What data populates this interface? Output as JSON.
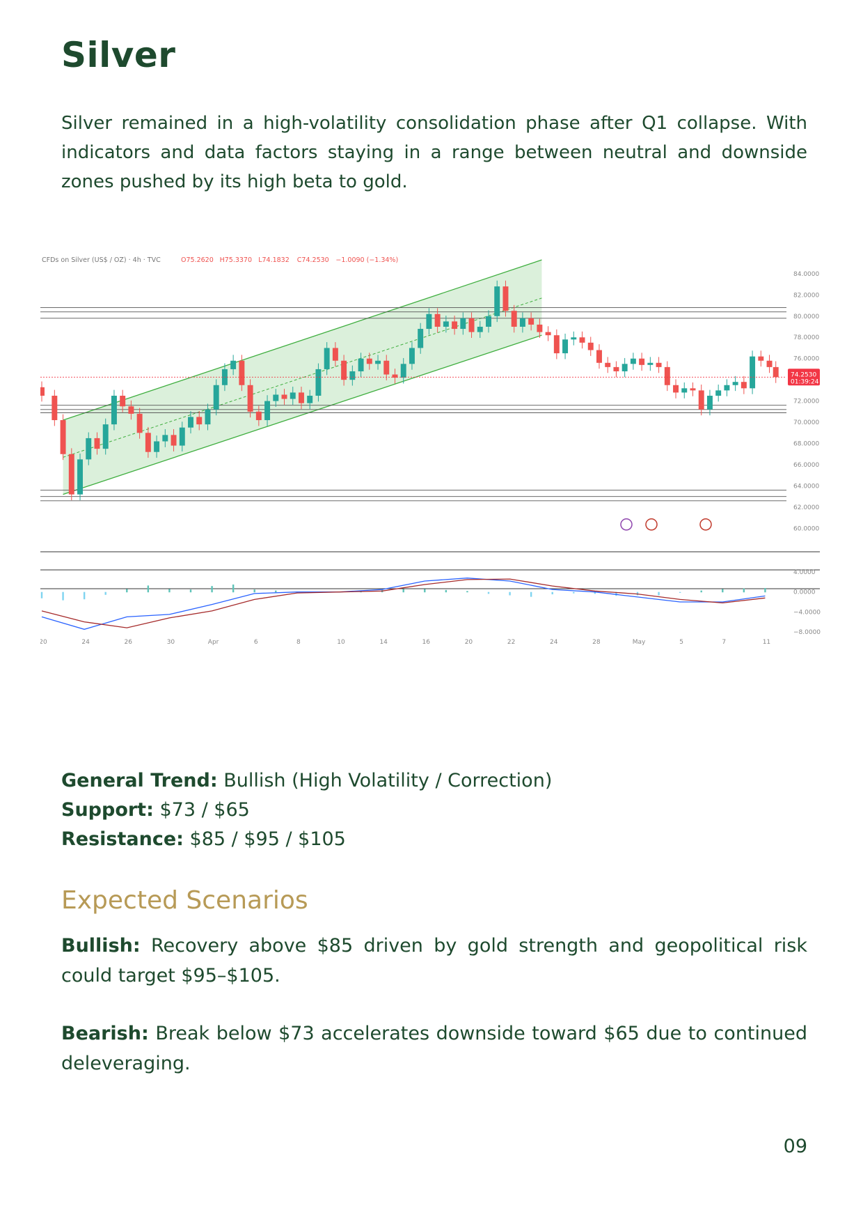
{
  "page": {
    "title": "Silver",
    "intro": "Silver remained in a high-volatility consolidation phase after Q1 collapse. With indicators and data factors staying in a range between neutral and downside zones pushed by its high beta to gold.",
    "page_number": "09"
  },
  "stats": {
    "trend_label": "General Trend:",
    "trend_value": " Bullish (High Volatility / Correction)",
    "support_label": "Support:",
    "support_value": " $73 / $65",
    "resistance_label": "Resistance:",
    "resistance_value": " $85 / $95 / $105"
  },
  "scenarios": {
    "heading": "Expected Scenarios",
    "bullish_label": "Bullish:",
    "bullish_text": " Recovery above $85 driven by gold strength and geopolitical risk could target $95–$105.",
    "bearish_label": "Bearish:",
    "bearish_text": " Break below $73 accelerates downside toward $65 due to continued deleveraging."
  },
  "chart_data": {
    "type": "candlestick",
    "header": {
      "symbol": "CFDs on Silver (US$ / OZ) · 4h · TVC",
      "o": "O75.2620",
      "h": "H75.3370",
      "l": "L74.1832",
      "c": "C74.2530",
      "change": "−1.0090 (−1.34%)"
    },
    "price_axis": [
      "84.0000",
      "82.0000",
      "80.0000",
      "78.0000",
      "76.0000",
      "72.0000",
      "70.0000",
      "68.0000",
      "66.0000",
      "64.0000",
      "62.0000",
      "60.0000"
    ],
    "price_ticks": [
      84,
      82,
      80,
      78,
      76,
      72,
      70,
      68,
      66,
      64,
      62,
      60
    ],
    "ylim": [
      59.5,
      85.5
    ],
    "last_price": "74.2530",
    "last_value": 74.253,
    "countdown": "01:39:24",
    "x_labels": [
      "20",
      "24",
      "26",
      "30",
      "Apr",
      "6",
      "8",
      "10",
      "14",
      "16",
      "20",
      "22",
      "24",
      "28",
      "May",
      "5",
      "7",
      "11"
    ],
    "x_ticks": [
      0,
      2,
      4,
      6,
      8,
      10,
      12,
      14,
      16,
      18,
      20,
      22,
      24,
      26,
      28,
      30,
      32,
      34
    ],
    "x_range": [
      0,
      35
    ],
    "closes": [
      [
        0.0,
        72.5
      ],
      [
        0.6,
        70.2
      ],
      [
        1.0,
        67.0
      ],
      [
        1.4,
        63.2
      ],
      [
        1.8,
        66.5
      ],
      [
        2.2,
        68.5
      ],
      [
        2.6,
        67.5
      ],
      [
        3.0,
        69.8
      ],
      [
        3.4,
        72.5
      ],
      [
        3.8,
        71.5
      ],
      [
        4.2,
        70.8
      ],
      [
        4.6,
        69.0
      ],
      [
        5.0,
        67.2
      ],
      [
        5.4,
        68.2
      ],
      [
        5.8,
        68.8
      ],
      [
        6.2,
        67.8
      ],
      [
        6.6,
        69.5
      ],
      [
        7.0,
        70.5
      ],
      [
        7.4,
        69.8
      ],
      [
        7.8,
        71.2
      ],
      [
        8.2,
        73.5
      ],
      [
        8.6,
        75.0
      ],
      [
        9.0,
        75.8
      ],
      [
        9.4,
        73.5
      ],
      [
        9.8,
        71.0
      ],
      [
        10.2,
        70.2
      ],
      [
        10.6,
        72.0
      ],
      [
        11.0,
        72.6
      ],
      [
        11.4,
        72.2
      ],
      [
        11.8,
        72.8
      ],
      [
        12.2,
        71.8
      ],
      [
        12.6,
        72.5
      ],
      [
        13.0,
        75.0
      ],
      [
        13.4,
        77.0
      ],
      [
        13.8,
        75.8
      ],
      [
        14.2,
        74.0
      ],
      [
        14.6,
        74.8
      ],
      [
        15.0,
        76.0
      ],
      [
        15.4,
        75.5
      ],
      [
        15.8,
        75.8
      ],
      [
        16.2,
        74.5
      ],
      [
        16.6,
        74.2
      ],
      [
        17.0,
        75.5
      ],
      [
        17.4,
        77.0
      ],
      [
        17.8,
        78.8
      ],
      [
        18.2,
        80.2
      ],
      [
        18.6,
        79.0
      ],
      [
        19.0,
        79.5
      ],
      [
        19.4,
        78.8
      ],
      [
        19.8,
        79.8
      ],
      [
        20.2,
        78.5
      ],
      [
        20.6,
        79.0
      ],
      [
        21.0,
        80.0
      ],
      [
        21.4,
        82.8
      ],
      [
        21.8,
        80.5
      ],
      [
        22.2,
        79.0
      ],
      [
        22.6,
        79.8
      ],
      [
        23.0,
        79.2
      ],
      [
        23.4,
        78.5
      ],
      [
        23.8,
        78.2
      ],
      [
        24.2,
        76.5
      ],
      [
        24.6,
        77.8
      ],
      [
        25.0,
        78.0
      ],
      [
        25.4,
        77.5
      ],
      [
        25.8,
        76.8
      ],
      [
        26.2,
        75.6
      ],
      [
        26.6,
        75.2
      ],
      [
        27.0,
        74.8
      ],
      [
        27.4,
        75.5
      ],
      [
        27.8,
        76.0
      ],
      [
        28.2,
        75.4
      ],
      [
        28.6,
        75.6
      ],
      [
        29.0,
        75.2
      ],
      [
        29.4,
        73.5
      ],
      [
        29.8,
        72.8
      ],
      [
        30.2,
        73.2
      ],
      [
        30.6,
        73.0
      ],
      [
        31.0,
        71.2
      ],
      [
        31.4,
        72.5
      ],
      [
        31.8,
        73.0
      ],
      [
        32.2,
        73.5
      ],
      [
        32.6,
        73.8
      ],
      [
        33.0,
        73.2
      ],
      [
        33.4,
        76.2
      ],
      [
        33.8,
        75.8
      ],
      [
        34.2,
        75.2
      ],
      [
        34.5,
        74.25
      ]
    ],
    "channel": {
      "lower": [
        [
          1.0,
          63.2
        ],
        [
          23.5,
          78.2
        ]
      ],
      "upper": [
        [
          1.0,
          70.2
        ],
        [
          23.5,
          85.3
        ]
      ],
      "mid": [
        [
          1.0,
          66.7
        ],
        [
          23.5,
          81.7
        ]
      ],
      "fill": "#d7eed7",
      "line": "#3fae3f"
    },
    "horizontal_levels": [
      80.8,
      80.4,
      79.8,
      71.6,
      71.2,
      70.9,
      63.6,
      63.0,
      62.6
    ],
    "macd_axis": [
      "4.0000",
      "0.0000",
      "−4.0000",
      "−8.0000"
    ],
    "macd_ticks": [
      4,
      0,
      -4,
      -8
    ],
    "macd_ylim": [
      -9,
      5
    ],
    "macd_line": [
      [
        0,
        -5.0
      ],
      [
        2,
        -7.5
      ],
      [
        4,
        -5.0
      ],
      [
        6,
        -4.5
      ],
      [
        8,
        -2.5
      ],
      [
        10,
        -0.3
      ],
      [
        12,
        0.0
      ],
      [
        14,
        0.0
      ],
      [
        16,
        0.5
      ],
      [
        18,
        2.2
      ],
      [
        20,
        2.8
      ],
      [
        22,
        2.2
      ],
      [
        24,
        0.5
      ],
      [
        26,
        0.0
      ],
      [
        28,
        -1.0
      ],
      [
        30,
        -2.0
      ],
      [
        32,
        -2.0
      ],
      [
        34,
        -0.8
      ]
    ],
    "signal_line": [
      [
        0,
        -3.8
      ],
      [
        2,
        -6.0
      ],
      [
        4,
        -7.2
      ],
      [
        6,
        -5.2
      ],
      [
        8,
        -3.8
      ],
      [
        10,
        -1.5
      ],
      [
        12,
        -0.2
      ],
      [
        14,
        0.0
      ],
      [
        16,
        0.2
      ],
      [
        18,
        1.5
      ],
      [
        20,
        2.5
      ],
      [
        22,
        2.6
      ],
      [
        24,
        1.2
      ],
      [
        26,
        0.2
      ],
      [
        28,
        -0.4
      ],
      [
        30,
        -1.5
      ],
      [
        32,
        -2.2
      ],
      [
        34,
        -1.2
      ]
    ],
    "histogram": [
      [
        0,
        -1.2
      ],
      [
        1,
        -1.6
      ],
      [
        2,
        -1.4
      ],
      [
        3,
        -0.5
      ],
      [
        4,
        0.6
      ],
      [
        5,
        1.3
      ],
      [
        6,
        0.6
      ],
      [
        7,
        0.5
      ],
      [
        8,
        1.2
      ],
      [
        9,
        1.5
      ],
      [
        10,
        0.5
      ],
      [
        11,
        0.3
      ],
      [
        12,
        0.1
      ],
      [
        13,
        0.1
      ],
      [
        14,
        0.0
      ],
      [
        15,
        0.2
      ],
      [
        16,
        0.4
      ],
      [
        17,
        0.6
      ],
      [
        18,
        0.6
      ],
      [
        19,
        0.4
      ],
      [
        20,
        0.2
      ],
      [
        21,
        -0.3
      ],
      [
        22,
        -0.6
      ],
      [
        23,
        -0.9
      ],
      [
        24,
        -0.4
      ],
      [
        25,
        -0.2
      ],
      [
        26,
        -0.3
      ],
      [
        27,
        -0.7
      ],
      [
        28,
        -0.6
      ],
      [
        29,
        -0.6
      ],
      [
        30,
        -0.1
      ],
      [
        31,
        0.3
      ],
      [
        32,
        0.6
      ],
      [
        33,
        0.7
      ],
      [
        34,
        0.8
      ]
    ],
    "colors": {
      "up": "#26a69a",
      "down": "#ef5350",
      "macd": "#2962ff",
      "signal": "#a52a2a",
      "price_tag": "#f23645"
    }
  }
}
